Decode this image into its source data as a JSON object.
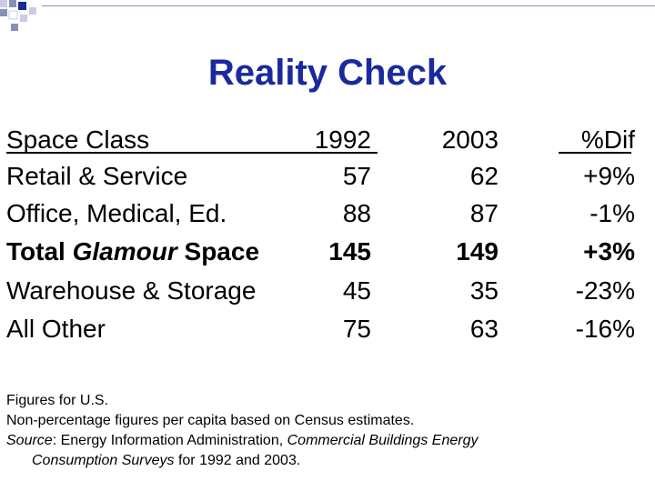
{
  "slide": {
    "title": "Reality Check"
  },
  "table": {
    "columns": [
      "Space Class",
      "1992",
      "2003",
      "%Dif"
    ],
    "rows": [
      {
        "label": "Retail & Service",
        "y1992": "57",
        "y2003": "62",
        "dif": "+9%"
      },
      {
        "label": "Office, Medical, Ed.",
        "y1992": "88",
        "y2003": "87",
        "dif": "-1%"
      },
      {
        "label_prefix": "Total ",
        "label_italic": "Glamour",
        "label_suffix": " Space",
        "y1992": "145",
        "y2003": "149",
        "dif": "+3%"
      },
      {
        "label": "Warehouse & Storage",
        "y1992": "45",
        "y2003": "35",
        "dif": "-23%"
      },
      {
        "label": "All Other",
        "y1992": "75",
        "y2003": "63",
        "dif": "-16%"
      }
    ]
  },
  "notes": {
    "line1": "Figures for U.S.",
    "line2": "Non-percentage figures per capita based on Census estimates.",
    "source_label": "Source",
    "source_text": ": Energy Information Administration, ",
    "source_publication_part1": "Commercial Buildings Energy",
    "source_publication_part2": "Consumption Surveys",
    "source_tail": " for 1992 and 2003."
  },
  "colors": {
    "title": "#1a2a9c",
    "decoration": "#8a8fb8"
  }
}
